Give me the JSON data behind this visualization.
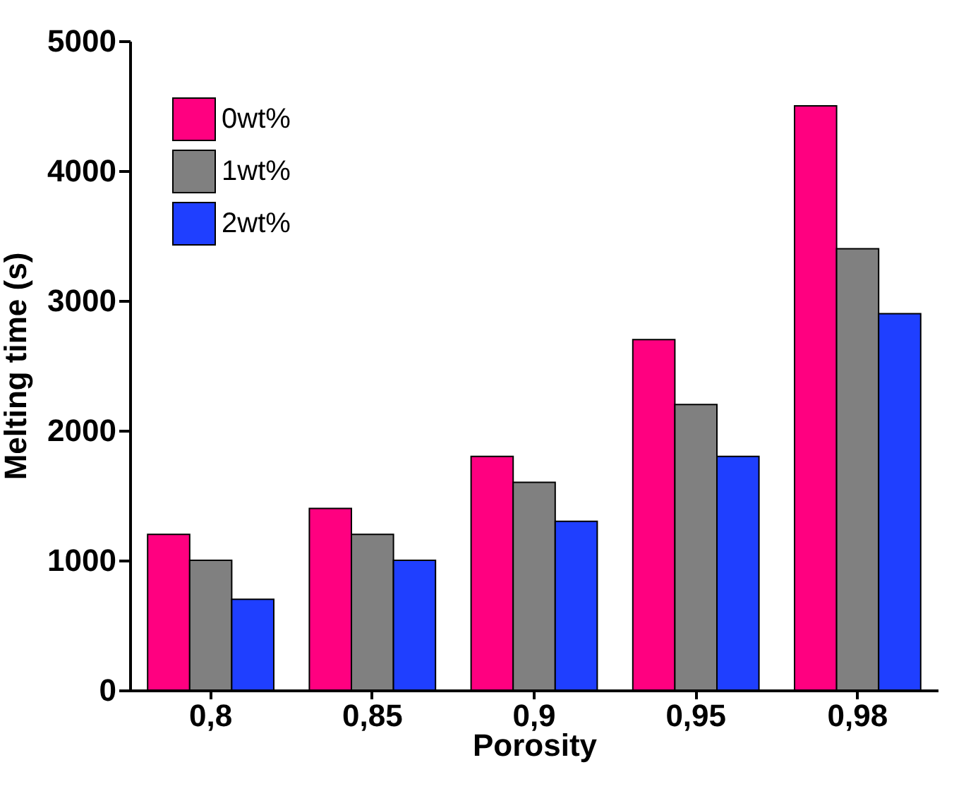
{
  "chart_data": {
    "type": "bar",
    "xlabel": "Porosity",
    "ylabel": "Melting time (s)",
    "categories": [
      "0,8",
      "0,85",
      "0,9",
      "0,95",
      "0,98"
    ],
    "series": [
      {
        "name": "0wt%",
        "color": "#ff0080",
        "values": [
          1200,
          1400,
          1800,
          2700,
          4500
        ]
      },
      {
        "name": "1wt%",
        "color": "#808080",
        "values": [
          1000,
          1200,
          1600,
          2200,
          3400
        ]
      },
      {
        "name": "2wt%",
        "color": "#1f3fff",
        "values": [
          700,
          1000,
          1300,
          1800,
          2900
        ]
      }
    ],
    "ylim": [
      0,
      5000
    ],
    "yticks": [
      0,
      1000,
      2000,
      3000,
      4000,
      5000
    ],
    "grid": false,
    "legend": "top left"
  }
}
